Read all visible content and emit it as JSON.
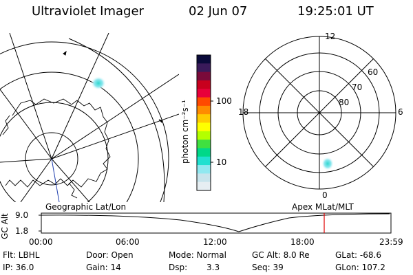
{
  "header": {
    "title": "Ultraviolet Imager",
    "date": "02 Jun 07",
    "time": "19:25:01 UT"
  },
  "left_panel": {
    "caption": "Geographic Lat/Lon"
  },
  "right_panel": {
    "caption": "Apex MLat/MLT",
    "mlt_labels": {
      "top": "12",
      "left": "18",
      "right": "6",
      "bottom": "0"
    },
    "lat_labels": [
      "60",
      "70",
      "80"
    ]
  },
  "colorbar": {
    "label": "photon cm⁻²s⁻¹",
    "ticks": [
      "100",
      "10"
    ],
    "colors": [
      "#0a0a3a",
      "#3a1a5a",
      "#7a0a3a",
      "#c8001e",
      "#e8003a",
      "#ff4a00",
      "#ff8c00",
      "#ffcc00",
      "#ffff00",
      "#b4ff00",
      "#40e040",
      "#00d888",
      "#20e0d0",
      "#90e8f0",
      "#c8e4ec",
      "#e6eef2"
    ]
  },
  "timeline": {
    "ylabel": "GC Alt",
    "yticks": [
      "9.0",
      "1.8"
    ],
    "xticks": [
      "00:00",
      "06:00",
      "12:00",
      "18:00",
      "23:59"
    ],
    "marker_time": "19:25"
  },
  "info": {
    "row1": [
      "Flt: LBHL",
      "Door: Open",
      "Mode: Normal",
      "GC Alt: 8.0 Re",
      "GLat: -68.6"
    ],
    "row2": [
      "IP: 36.0",
      "Gain: 14",
      "Dsp:",
      "3.3",
      "Seq: 39",
      "GLon: 107.2"
    ]
  },
  "colors": {
    "marker": "#e00000",
    "track": "#1f3fae"
  }
}
